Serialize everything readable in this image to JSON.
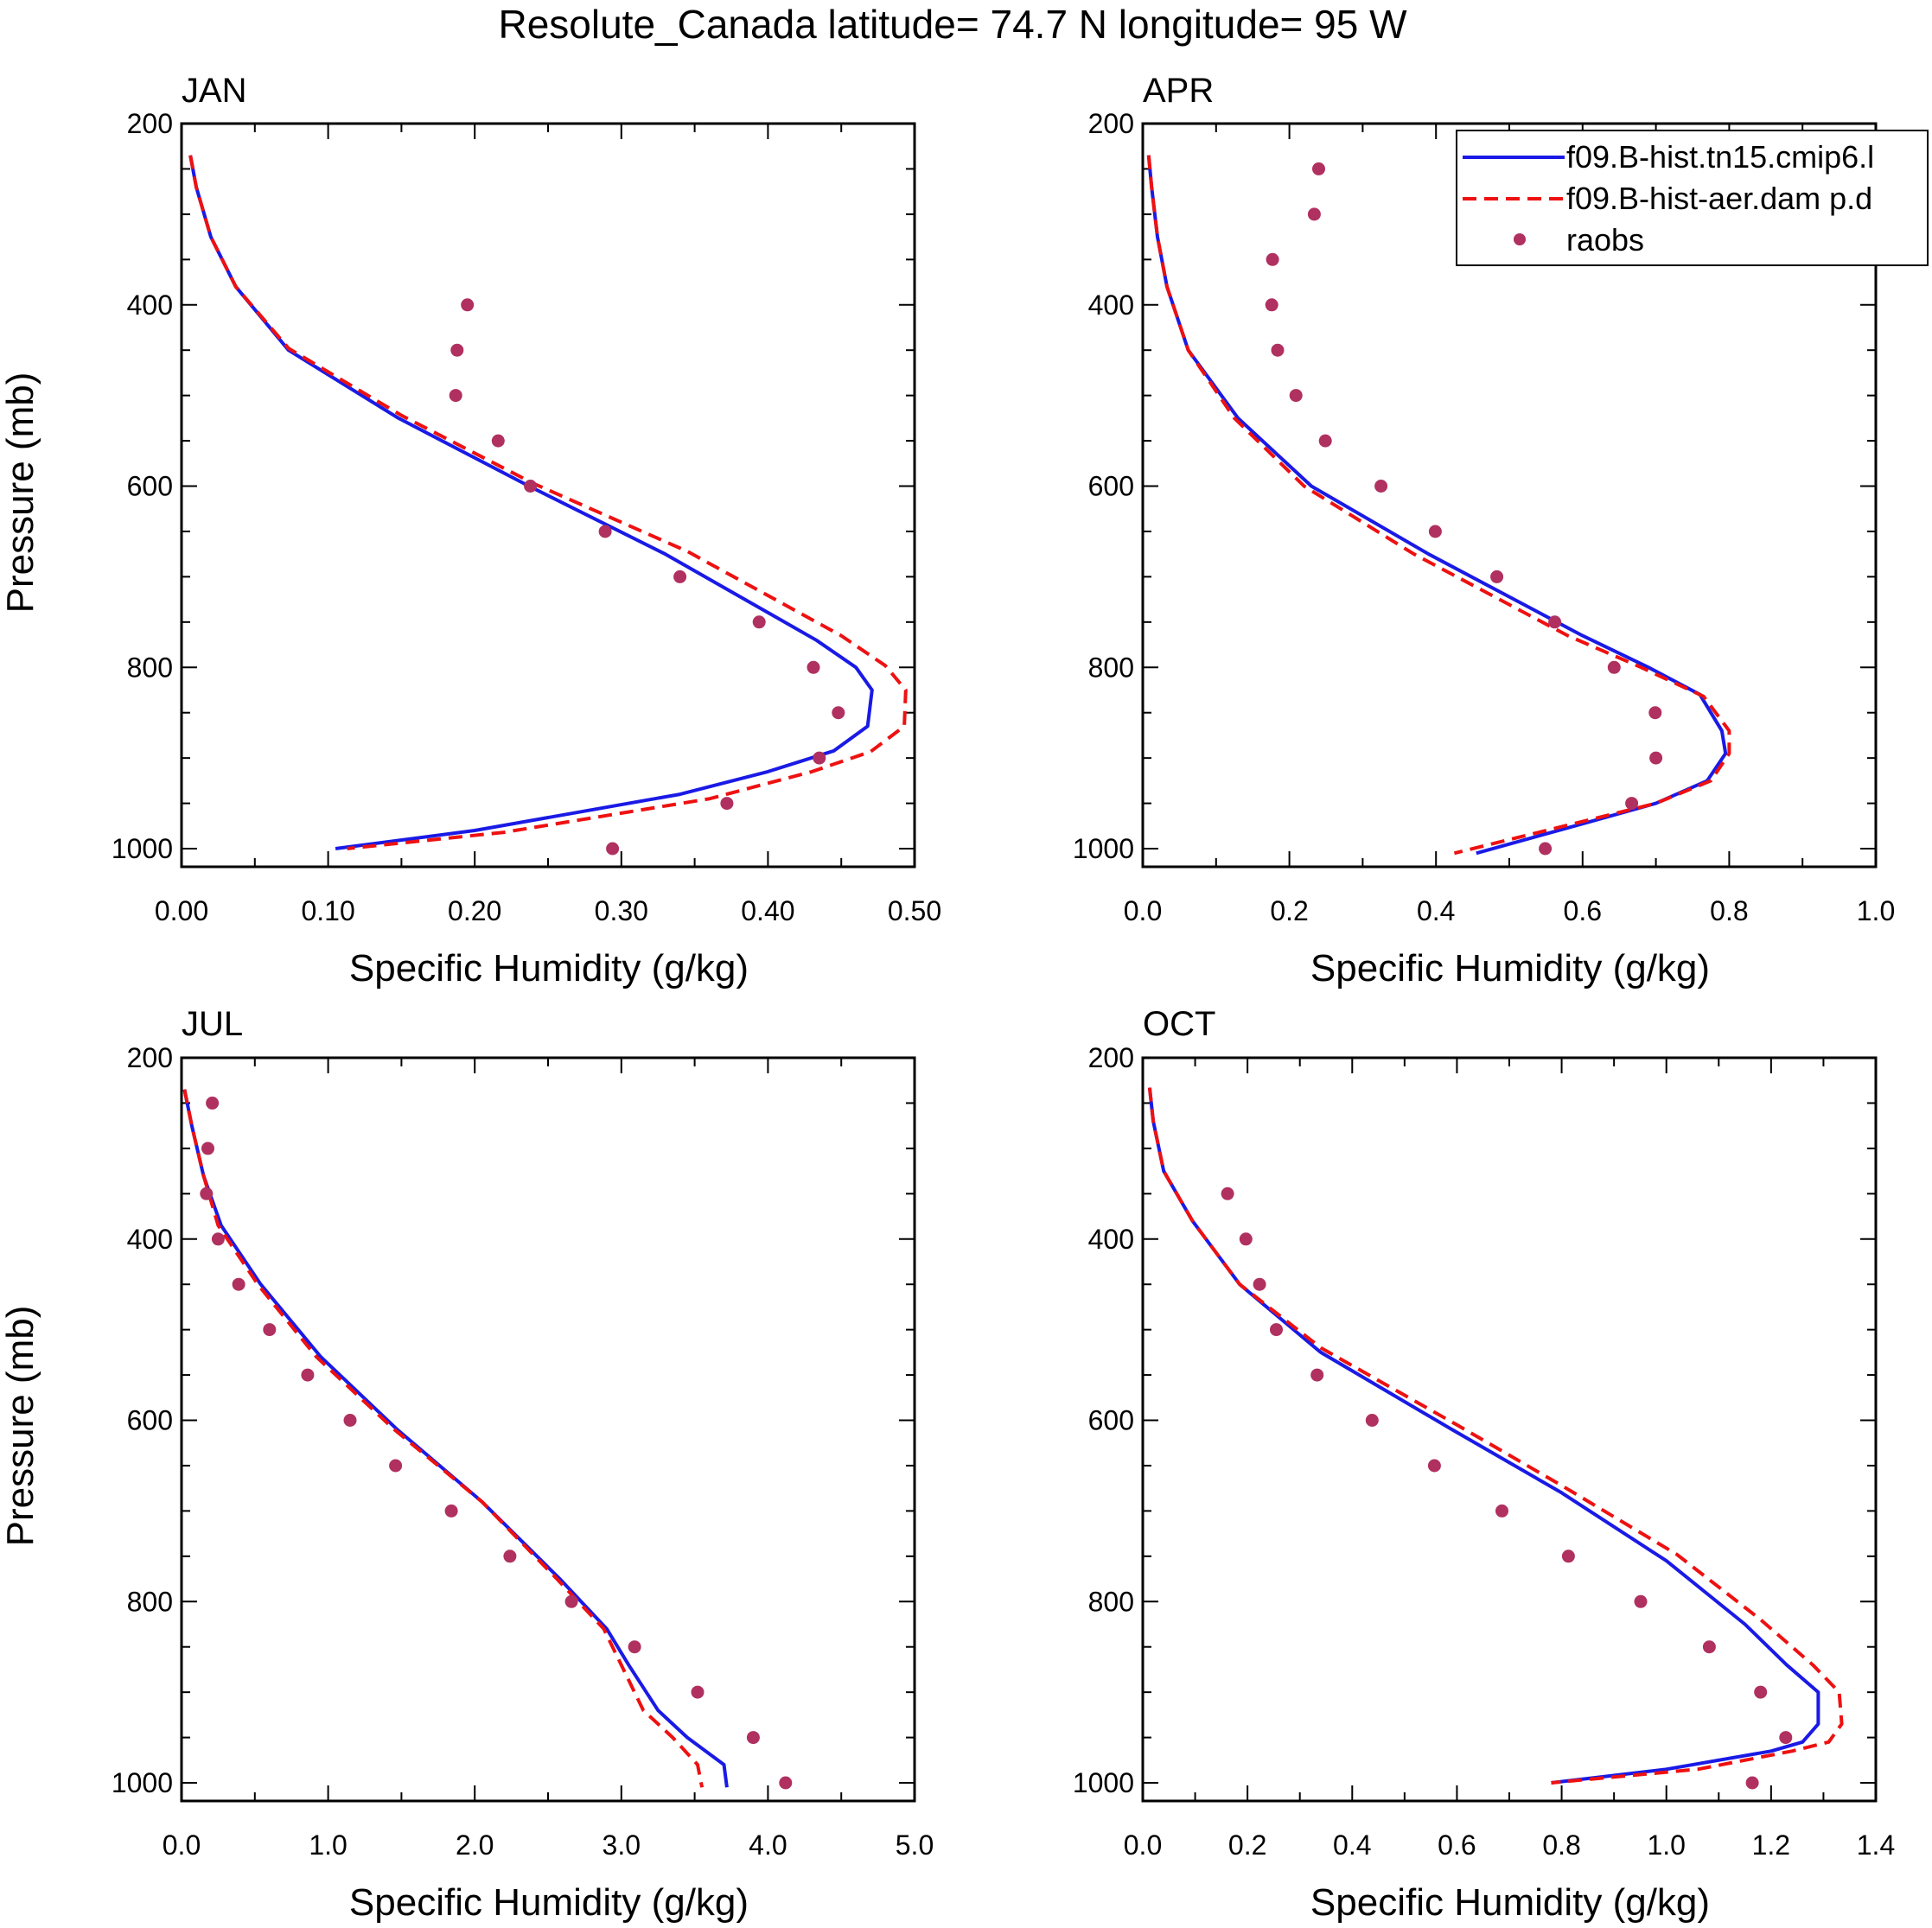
{
  "figure": {
    "title": "Resolute_Canada  latitude= 74.7 N longitude= 95 W",
    "colors": {
      "model1": "#1a1ae6",
      "model2": "#ee1111",
      "obs": "#b03060",
      "axis": "#000000"
    }
  },
  "legend": {
    "entries": [
      {
        "label": "f09.B-hist.tn15.cmip6.l",
        "style": "solid",
        "color": "#1a1ae6"
      },
      {
        "label": "f09.B-hist-aer.dam p.d",
        "style": "dashed",
        "color": "#ee1111"
      },
      {
        "label": "raobs",
        "style": "marker",
        "color": "#b03060"
      }
    ]
  },
  "chart_data": [
    {
      "type": "line",
      "panel": "JAN",
      "title": "JAN",
      "xlabel": "Specific Humidity (g/kg)",
      "ylabel": "Pressure (mb)",
      "xlim": [
        0.0,
        0.5
      ],
      "ylim": [
        1020,
        200
      ],
      "xticks": [
        "0.00",
        "0.10",
        "0.20",
        "0.30",
        "0.40",
        "0.50"
      ],
      "yticks": [
        "200",
        "400",
        "600",
        "800",
        "1000"
      ],
      "series": [
        {
          "name": "f09.B-hist.tn15.cmip6.l",
          "style": "solid",
          "x": [
            0.006,
            0.01,
            0.02,
            0.037,
            0.073,
            0.148,
            0.237,
            0.33,
            0.433,
            0.46,
            0.471,
            0.468,
            0.445,
            0.4,
            0.34,
            0.2,
            0.105
          ],
          "y": [
            235,
            270,
            325,
            380,
            450,
            525,
            600,
            675,
            770,
            800,
            825,
            865,
            892,
            915,
            940,
            980,
            1000
          ]
        },
        {
          "name": "f09.B-hist-aer.dam p.d",
          "style": "dashed",
          "x": [
            0.006,
            0.01,
            0.02,
            0.037,
            0.073,
            0.15,
            0.24,
            0.345,
            0.45,
            0.48,
            0.494,
            0.493,
            0.47,
            0.43,
            0.36,
            0.22,
            0.113
          ],
          "y": [
            235,
            270,
            325,
            380,
            448,
            522,
            597,
            672,
            765,
            798,
            825,
            865,
            893,
            915,
            945,
            982,
            1000
          ]
        }
      ],
      "points": {
        "name": "raobs",
        "x": [
          0.195,
          0.188,
          0.187,
          0.216,
          0.238,
          0.289,
          0.34,
          0.394,
          0.431,
          0.448,
          0.435,
          0.372,
          0.294
        ],
        "y": [
          400,
          450,
          500,
          550,
          600,
          650,
          700,
          750,
          800,
          850,
          900,
          950,
          1000
        ]
      }
    },
    {
      "type": "line",
      "panel": "APR",
      "title": "APR",
      "xlabel": "Specific Humidity (g/kg)",
      "ylabel": "",
      "xlim": [
        0.0,
        1.0
      ],
      "ylim": [
        1020,
        200
      ],
      "xticks": [
        "0.0",
        "0.2",
        "0.4",
        "0.6",
        "0.8",
        "1.0"
      ],
      "yticks": [
        "200",
        "400",
        "600",
        "800",
        "1000"
      ],
      "series": [
        {
          "name": "f09.B-hist.tn15.cmip6.l",
          "style": "solid",
          "x": [
            0.008,
            0.012,
            0.02,
            0.033,
            0.062,
            0.13,
            0.23,
            0.39,
            0.6,
            0.69,
            0.76,
            0.79,
            0.795,
            0.77,
            0.7,
            0.58,
            0.455
          ],
          "y": [
            235,
            270,
            325,
            380,
            450,
            525,
            600,
            675,
            765,
            800,
            830,
            870,
            895,
            925,
            950,
            977,
            1005
          ]
        },
        {
          "name": "f09.B-hist-aer.dam p.d",
          "style": "dashed",
          "x": [
            0.008,
            0.012,
            0.02,
            0.033,
            0.062,
            0.125,
            0.22,
            0.37,
            0.58,
            0.68,
            0.765,
            0.8,
            0.8,
            0.775,
            0.7,
            0.56,
            0.425
          ],
          "y": [
            235,
            270,
            325,
            380,
            450,
            525,
            600,
            675,
            765,
            800,
            832,
            870,
            895,
            925,
            950,
            978,
            1005
          ]
        }
      ],
      "points": {
        "name": "raobs",
        "x": [
          0.24,
          0.234,
          0.177,
          0.176,
          0.184,
          0.209,
          0.249,
          0.325,
          0.399,
          0.483,
          0.562,
          0.643,
          0.699,
          0.7,
          0.667,
          0.549
        ],
        "y": [
          250,
          300,
          350,
          400,
          450,
          500,
          550,
          600,
          650,
          700,
          750,
          800,
          850,
          900,
          950,
          1000
        ]
      }
    },
    {
      "type": "line",
      "panel": "JUL",
      "title": "JUL",
      "xlabel": "Specific Humidity (g/kg)",
      "ylabel": "Pressure (mb)",
      "xlim": [
        0.0,
        5.0
      ],
      "ylim": [
        1020,
        200
      ],
      "xticks": [
        "0.0",
        "1.0",
        "2.0",
        "3.0",
        "4.0",
        "5.0"
      ],
      "yticks": [
        "200",
        "400",
        "600",
        "800",
        "1000"
      ],
      "series": [
        {
          "name": "f09.B-hist.tn15.cmip6.l",
          "style": "solid",
          "x": [
            0.02,
            0.07,
            0.15,
            0.27,
            0.54,
            0.95,
            1.47,
            2.05,
            2.58,
            2.9,
            3.05,
            3.25,
            3.45,
            3.7,
            3.72
          ],
          "y": [
            235,
            275,
            330,
            385,
            450,
            530,
            610,
            690,
            775,
            830,
            870,
            920,
            950,
            980,
            1005
          ]
        },
        {
          "name": "f09.B-hist-aer.dam p.d",
          "style": "dashed",
          "x": [
            0.02,
            0.07,
            0.15,
            0.25,
            0.52,
            0.92,
            1.45,
            2.05,
            2.56,
            2.88,
            3.0,
            3.15,
            3.35,
            3.52,
            3.55
          ],
          "y": [
            235,
            275,
            330,
            385,
            450,
            530,
            610,
            690,
            775,
            830,
            870,
            920,
            950,
            980,
            1005
          ]
        }
      ],
      "points": {
        "name": "raobs",
        "x": [
          0.21,
          0.18,
          0.17,
          0.25,
          0.39,
          0.6,
          0.86,
          1.15,
          1.46,
          1.84,
          2.24,
          2.66,
          3.09,
          3.52,
          3.9,
          4.12
        ],
        "y": [
          250,
          300,
          350,
          400,
          450,
          500,
          550,
          600,
          650,
          700,
          750,
          800,
          850,
          900,
          950,
          1000
        ]
      }
    },
    {
      "type": "line",
      "panel": "OCT",
      "title": "OCT",
      "xlabel": "Specific Humidity (g/kg)",
      "ylabel": "",
      "xlim": [
        0.0,
        1.4
      ],
      "ylim": [
        1020,
        200
      ],
      "xticks": [
        "0.0",
        "0.2",
        "0.4",
        "0.6",
        "0.8",
        "1.0",
        "1.2",
        "1.4"
      ],
      "yticks": [
        "200",
        "400",
        "600",
        "800",
        "1000"
      ],
      "series": [
        {
          "name": "f09.B-hist.tn15.cmip6.l",
          "style": "solid",
          "x": [
            0.013,
            0.02,
            0.04,
            0.095,
            0.185,
            0.34,
            0.59,
            0.8,
            1.0,
            1.15,
            1.23,
            1.29,
            1.29,
            1.26,
            1.2,
            1.0,
            0.78
          ],
          "y": [
            233,
            270,
            325,
            380,
            450,
            525,
            610,
            680,
            755,
            825,
            870,
            900,
            935,
            955,
            965,
            985,
            1000
          ]
        },
        {
          "name": "f09.B-hist-aer.dam p.d",
          "style": "dashed",
          "x": [
            0.013,
            0.02,
            0.04,
            0.095,
            0.185,
            0.34,
            0.6,
            0.8,
            1.02,
            1.18,
            1.28,
            1.33,
            1.335,
            1.31,
            1.24,
            1.06,
            0.78
          ],
          "y": [
            233,
            270,
            325,
            380,
            450,
            520,
            605,
            672,
            748,
            820,
            870,
            900,
            935,
            955,
            965,
            985,
            1000
          ]
        }
      ],
      "points": {
        "name": "raobs",
        "x": [
          0.162,
          0.197,
          0.223,
          0.255,
          0.333,
          0.438,
          0.557,
          0.686,
          0.813,
          0.951,
          1.082,
          1.18,
          1.228,
          1.164
        ],
        "y": [
          350,
          400,
          450,
          500,
          550,
          600,
          650,
          700,
          750,
          800,
          850,
          900,
          950,
          1000
        ]
      }
    }
  ]
}
